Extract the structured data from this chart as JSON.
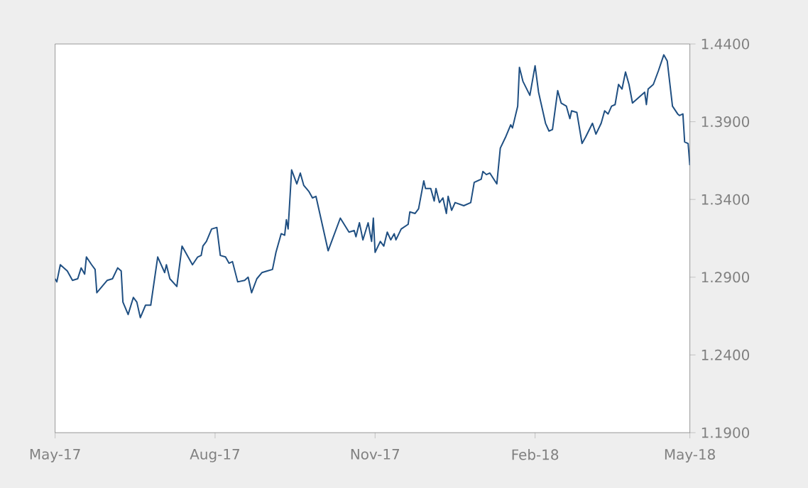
{
  "chart_data": {
    "type": "line",
    "color": "#1f4f82",
    "x": [
      "2017-05-01",
      "2017-05-02",
      "2017-05-04",
      "2017-05-08",
      "2017-05-11",
      "2017-05-14",
      "2017-05-16",
      "2017-05-18",
      "2017-05-19",
      "2017-05-22",
      "2017-05-24",
      "2017-05-25",
      "2017-05-31",
      "2017-06-03",
      "2017-06-06",
      "2017-06-08",
      "2017-06-09",
      "2017-06-12",
      "2017-06-15",
      "2017-06-17",
      "2017-06-19",
      "2017-06-22",
      "2017-06-25",
      "2017-06-29",
      "2017-07-03",
      "2017-07-04",
      "2017-07-06",
      "2017-07-10",
      "2017-07-13",
      "2017-07-19",
      "2017-07-22",
      "2017-07-24",
      "2017-07-25",
      "2017-07-27",
      "2017-07-30",
      "2017-08-02",
      "2017-08-04",
      "2017-08-07",
      "2017-08-09",
      "2017-08-11",
      "2017-08-14",
      "2017-08-18",
      "2017-08-20",
      "2017-08-22",
      "2017-08-25",
      "2017-08-28",
      "2017-08-31",
      "2017-09-03",
      "2017-09-05",
      "2017-09-08",
      "2017-09-10",
      "2017-09-11",
      "2017-09-12",
      "2017-09-14",
      "2017-09-17",
      "2017-09-19",
      "2017-09-21",
      "2017-09-24",
      "2017-09-26",
      "2017-09-28",
      "2017-10-05",
      "2017-10-12",
      "2017-10-17",
      "2017-10-20",
      "2017-10-21",
      "2017-10-23",
      "2017-10-25",
      "2017-10-28",
      "2017-10-30",
      "2017-10-31",
      "2017-11-01",
      "2017-11-04",
      "2017-11-06",
      "2017-11-08",
      "2017-11-10",
      "2017-11-12",
      "2017-11-13",
      "2017-11-16",
      "2017-11-20",
      "2017-11-21",
      "2017-11-24",
      "2017-11-26",
      "2017-11-29",
      "2017-11-30",
      "2017-12-03",
      "2017-12-05",
      "2017-12-06",
      "2017-12-08",
      "2017-12-10",
      "2017-12-12",
      "2017-12-13",
      "2017-12-15",
      "2017-12-17",
      "2017-12-22",
      "2017-12-26",
      "2017-12-28",
      "2018-01-01",
      "2018-01-02",
      "2018-01-04",
      "2018-01-06",
      "2018-01-10",
      "2018-01-12",
      "2018-01-15",
      "2018-01-18",
      "2018-01-19",
      "2018-01-22",
      "2018-01-23",
      "2018-01-25",
      "2018-01-29",
      "2018-02-01",
      "2018-02-03",
      "2018-02-06",
      "2018-02-07",
      "2018-02-09",
      "2018-02-11",
      "2018-02-14",
      "2018-02-16",
      "2018-02-19",
      "2018-02-21",
      "2018-02-22",
      "2018-02-25",
      "2018-02-28",
      "2018-03-02",
      "2018-03-06",
      "2018-03-08",
      "2018-03-11",
      "2018-03-13",
      "2018-03-15",
      "2018-03-17",
      "2018-03-19",
      "2018-03-21",
      "2018-03-23",
      "2018-03-25",
      "2018-03-27",
      "2018-03-29",
      "2018-04-01",
      "2018-04-05",
      "2018-04-06",
      "2018-04-07",
      "2018-04-10",
      "2018-04-13",
      "2018-04-16",
      "2018-04-18",
      "2018-04-21",
      "2018-04-24",
      "2018-04-25",
      "2018-04-27",
      "2018-04-28",
      "2018-04-30",
      "2018-05-01"
    ],
    "values": [
      1.289,
      1.287,
      1.298,
      1.294,
      1.288,
      1.289,
      1.296,
      1.292,
      1.303,
      1.298,
      1.295,
      1.28,
      1.288,
      1.289,
      1.296,
      1.294,
      1.274,
      1.266,
      1.277,
      1.274,
      1.264,
      1.272,
      1.272,
      1.303,
      1.293,
      1.298,
      1.289,
      1.284,
      1.31,
      1.298,
      1.303,
      1.304,
      1.31,
      1.313,
      1.321,
      1.322,
      1.304,
      1.303,
      1.299,
      1.3,
      1.287,
      1.288,
      1.29,
      1.28,
      1.289,
      1.293,
      1.294,
      1.295,
      1.306,
      1.318,
      1.317,
      1.327,
      1.321,
      1.359,
      1.35,
      1.357,
      1.349,
      1.345,
      1.341,
      1.342,
      1.307,
      1.328,
      1.319,
      1.32,
      1.316,
      1.325,
      1.314,
      1.325,
      1.313,
      1.328,
      1.306,
      1.313,
      1.31,
      1.319,
      1.314,
      1.318,
      1.314,
      1.321,
      1.324,
      1.332,
      1.331,
      1.334,
      1.352,
      1.347,
      1.347,
      1.339,
      1.347,
      1.338,
      1.341,
      1.331,
      1.342,
      1.333,
      1.338,
      1.336,
      1.338,
      1.351,
      1.353,
      1.358,
      1.356,
      1.357,
      1.35,
      1.373,
      1.38,
      1.388,
      1.386,
      1.4,
      1.425,
      1.416,
      1.407,
      1.426,
      1.409,
      1.394,
      1.389,
      1.384,
      1.385,
      1.41,
      1.402,
      1.4,
      1.392,
      1.397,
      1.396,
      1.376,
      1.38,
      1.389,
      1.382,
      1.389,
      1.397,
      1.395,
      1.4,
      1.401,
      1.414,
      1.411,
      1.422,
      1.414,
      1.402,
      1.405,
      1.409,
      1.401,
      1.411,
      1.414,
      1.423,
      1.433,
      1.429,
      1.4,
      1.395,
      1.394,
      1.395,
      1.377,
      1.376,
      1.362
    ],
    "xlim": [
      "2017-05-01",
      "2018-05-01"
    ],
    "xticks": [
      {
        "value": "2017-05-01",
        "label": "May-17"
      },
      {
        "value": "2017-08-01",
        "label": "Aug-17"
      },
      {
        "value": "2017-11-01",
        "label": "Nov-17"
      },
      {
        "value": "2018-02-01",
        "label": "Feb-18"
      },
      {
        "value": "2018-05-01",
        "label": "May-18"
      }
    ],
    "ylim": [
      1.19,
      1.44
    ],
    "yticks": [
      {
        "value": 1.19,
        "label": "1.1900"
      },
      {
        "value": 1.24,
        "label": "1.2400"
      },
      {
        "value": 1.29,
        "label": "1.2900"
      },
      {
        "value": 1.34,
        "label": "1.3400"
      },
      {
        "value": 1.39,
        "label": "1.3900"
      },
      {
        "value": 1.44,
        "label": "1.4400"
      }
    ]
  }
}
